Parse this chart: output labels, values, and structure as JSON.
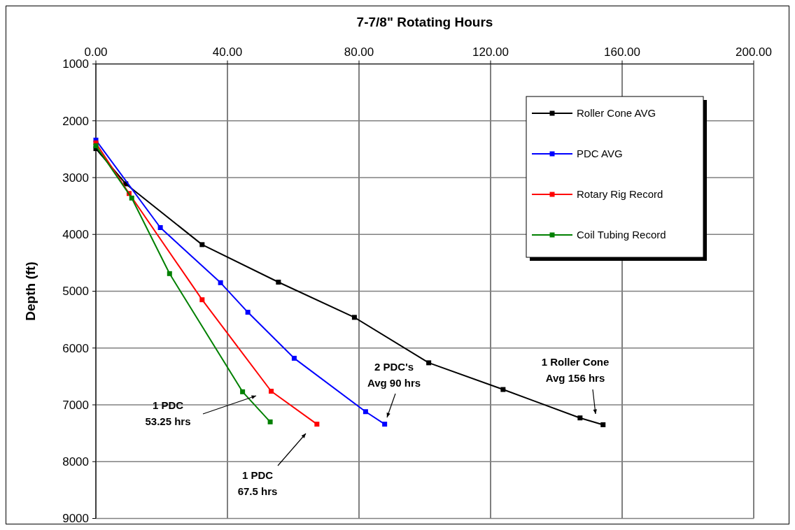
{
  "chart_data": {
    "type": "line",
    "title": "7-7/8\" Rotating Hours",
    "ylabel": "Depth (ft)",
    "xlim": [
      0,
      200
    ],
    "xticks": [
      {
        "value": 0,
        "label": "0.00"
      },
      {
        "value": 40,
        "label": "40.00"
      },
      {
        "value": 80,
        "label": "80.00"
      },
      {
        "value": 120,
        "label": "120.00"
      },
      {
        "value": 160,
        "label": "160.00"
      },
      {
        "value": 200,
        "label": "200.00"
      }
    ],
    "ylim": [
      9000,
      1000
    ],
    "yticks": [
      1000,
      2000,
      3000,
      4000,
      5000,
      6000,
      7000,
      8000,
      9000
    ],
    "grid": true,
    "legend": "top right",
    "marker": "square",
    "line_style": "solid",
    "series": [
      {
        "name": "Roller Cone AVG",
        "color": "#000000",
        "x": [
          0,
          9.1,
          32.3,
          55.5,
          78.6,
          101.2,
          123.8,
          147.2,
          154.2
        ],
        "values": [
          2490,
          3110,
          4180,
          4840,
          5460,
          6260,
          6730,
          7230,
          7350
        ]
      },
      {
        "name": "PDC AVG",
        "color": "#0000ff",
        "x": [
          0,
          19.6,
          37.9,
          46.2,
          60.3,
          82.0,
          87.8
        ],
        "values": [
          2340,
          3880,
          4850,
          5370,
          6180,
          7120,
          7340
        ]
      },
      {
        "name": "Rotary Rig Record",
        "color": "#ff0000",
        "x": [
          0,
          10.1,
          32.3,
          53.3,
          67.2
        ],
        "values": [
          2390,
          3280,
          5150,
          6760,
          7340
        ]
      },
      {
        "name": "Coil Tubing Record",
        "color": "#008000",
        "x": [
          0,
          10.9,
          22.4,
          44.6,
          53.0
        ],
        "values": [
          2440,
          3360,
          4690,
          6770,
          7300
        ]
      }
    ],
    "annotations": [
      "1 PDC\n53.25 hrs",
      "1 PDC\n67.5 hrs",
      "2 PDC's\nAvg 90 hrs",
      "1 Roller Cone\nAvg 156 hrs"
    ]
  }
}
